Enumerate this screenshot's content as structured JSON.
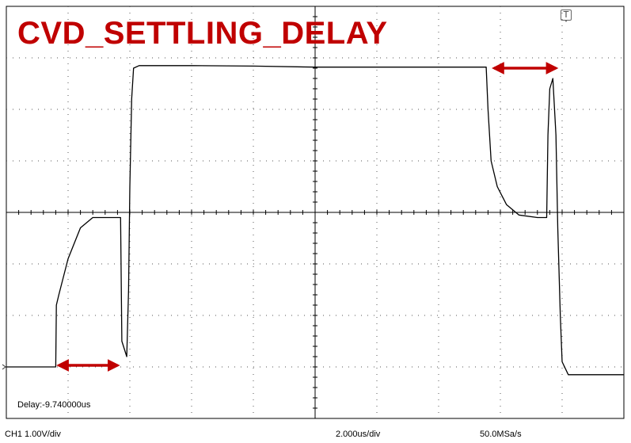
{
  "title": "CVD_SETTLING_DELAY",
  "delay_readout": "Delay:-9.740000us",
  "channel_scale": "CH1 1.00V/div",
  "time_scale": "2.000us/div",
  "sample_rate": "50.0MSa/s",
  "trigger_marker": "T",
  "colors": {
    "trace": "#000000",
    "grid": "#000000",
    "arrow": "#c00000",
    "title": "#c00000"
  },
  "chart_data": {
    "type": "line",
    "title": "CVD_SETTLING_DELAY",
    "xlabel": "",
    "ylabel": "",
    "grid": true,
    "xlim": [
      0,
      10
    ],
    "ylim": [
      -4,
      4
    ],
    "x_div": 10,
    "y_div": 8,
    "series": [
      {
        "x": [
          0,
          0.3,
          0.7,
          0.8,
          0.81,
          0.85,
          1.0,
          1.2,
          1.4,
          1.6,
          1.75,
          1.85,
          1.87,
          1.95,
          1.98,
          2.0,
          2.03,
          2.06,
          2.15,
          3.0,
          4.0,
          5.0,
          6.0,
          7.0,
          7.77,
          7.8,
          7.85,
          7.95,
          8.1,
          8.3,
          8.6,
          8.75,
          8.77,
          8.8,
          8.85,
          8.9,
          8.93,
          8.97,
          9.0,
          9.1,
          9.2,
          10.0
        ],
        "y": [
          -3.0,
          -3.0,
          -3.0,
          -3.0,
          -1.8,
          -1.6,
          -0.9,
          -0.3,
          -0.1,
          -0.1,
          -0.1,
          -0.1,
          -2.5,
          -2.8,
          -1.5,
          0.5,
          2.2,
          2.8,
          2.85,
          2.85,
          2.84,
          2.82,
          2.82,
          2.82,
          2.82,
          2.0,
          1.0,
          0.5,
          0.15,
          -0.05,
          -0.1,
          -0.1,
          1.5,
          2.4,
          2.6,
          1.5,
          -0.3,
          -2.0,
          -2.9,
          -3.15,
          -3.15,
          -3.15
        ]
      }
    ],
    "annotations": [
      {
        "type": "double-arrow",
        "x": [
          0.85,
          1.8
        ],
        "y": -2.97
      },
      {
        "type": "double-arrow",
        "x": [
          7.9,
          8.9
        ],
        "y": 2.8
      }
    ]
  }
}
